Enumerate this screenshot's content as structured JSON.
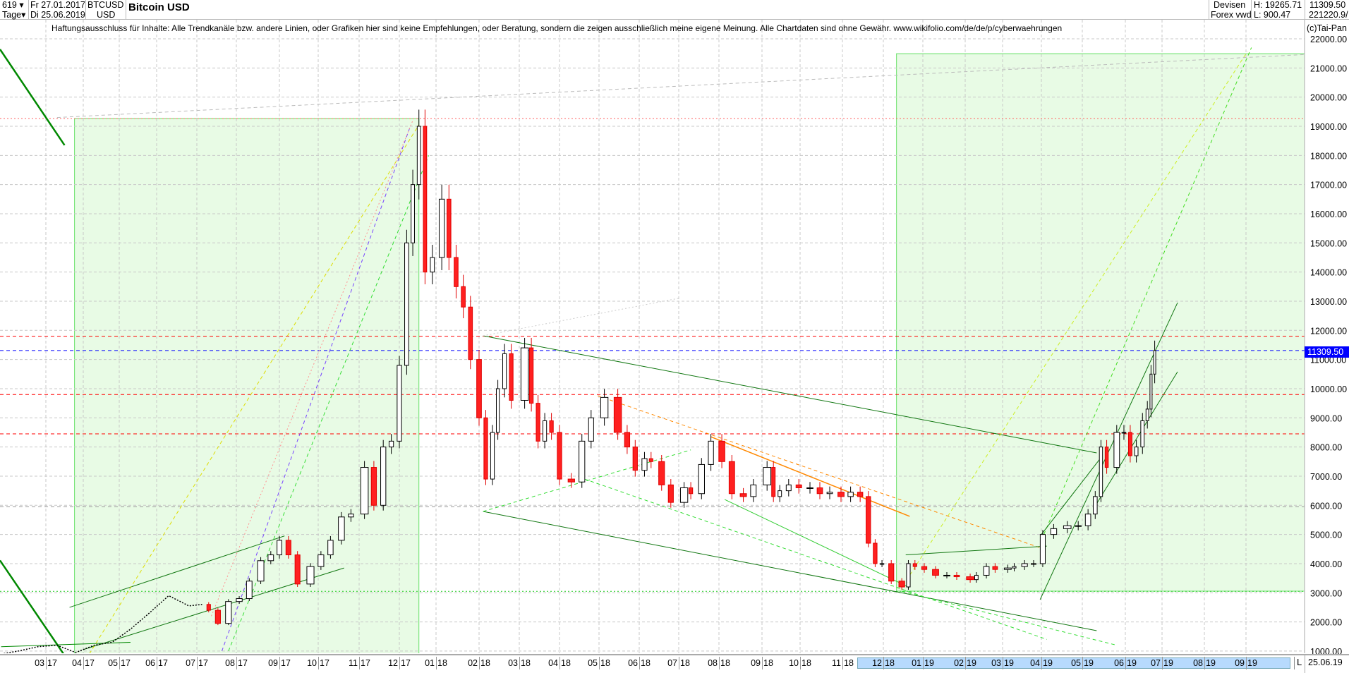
{
  "header": {
    "count": "619",
    "period": "Tage",
    "date_from": "Fr 27.01.2017",
    "date_to": "Di 25.06.2019",
    "symbol": "BTCUSD",
    "currency": "USD",
    "title": "Bitcoin USD",
    "market": "Devisen",
    "exchange": "Forex vwd",
    "high": "H: 19265.71",
    "low": "L: 900.47",
    "last": "11309.50",
    "volume": "221220.9/",
    "copyright": "(c)Tai-Pan",
    "disclaimer": "Haftungsausschluss für Inhalte: Alle Trendkanäle bzw. andere Linien, oder Grafiken hier sind keine Empfehlungen, oder Beratung, sondern die zeigen ausschließlich meine eigene Meinung. Alle Chartdaten sind ohne Gewähr.  www.wikifolio.com/de/de/p/cyberwaehrungen",
    "last_date": "25.06.19",
    "scale_mode": "L"
  },
  "chart_data": {
    "type": "candlestick",
    "title": "Bitcoin USD",
    "ylim": [
      1000,
      22000
    ],
    "y_ticks": [
      "22000.00",
      "21000.00",
      "20000.00",
      "19000.00",
      "18000.00",
      "17000.00",
      "16000.00",
      "15000.00",
      "14000.00",
      "13000.00",
      "12000.00",
      "11000.00",
      "10000.00",
      "9000.00",
      "8000.00",
      "7000.00",
      "6000.00",
      "5000.00",
      "4000.00",
      "3000.00",
      "2000.00",
      "1000.00"
    ],
    "x_ticks": [
      "03 17",
      "04 17",
      "05 17",
      "06 17",
      "07 17",
      "08 17",
      "09 17",
      "10 17",
      "11 17",
      "12 17",
      "01 18",
      "02 18",
      "03 18",
      "04 18",
      "05 18",
      "06 18",
      "07 18",
      "08 18",
      "09 18",
      "10 18",
      "11 18",
      "12 18",
      "01 19",
      "02 19",
      "03 19",
      "04 19",
      "05 19",
      "06 19",
      "07 19",
      "08 19",
      "09 19"
    ],
    "grid": true,
    "last_value": 11309.5,
    "last_value_color": "#0000ff",
    "closes": [
      [
        "2017-01-27",
        900
      ],
      [
        "2017-02-10",
        1000
      ],
      [
        "2017-02-25",
        1150
      ],
      [
        "2017-03-10",
        1200
      ],
      [
        "2017-03-25",
        950
      ],
      [
        "2017-04-10",
        1200
      ],
      [
        "2017-04-25",
        1300
      ],
      [
        "2017-05-10",
        1750
      ],
      [
        "2017-05-25",
        2300
      ],
      [
        "2017-06-10",
        2900
      ],
      [
        "2017-06-25",
        2550
      ],
      [
        "2017-07-05",
        2600
      ],
      [
        "2017-07-10",
        2400
      ],
      [
        "2017-07-17",
        1950
      ],
      [
        "2017-07-25",
        2700
      ],
      [
        "2017-08-03",
        2800
      ],
      [
        "2017-08-10",
        3400
      ],
      [
        "2017-08-18",
        4100
      ],
      [
        "2017-08-25",
        4300
      ],
      [
        "2017-09-01",
        4800
      ],
      [
        "2017-09-08",
        4300
      ],
      [
        "2017-09-15",
        3300
      ],
      [
        "2017-09-25",
        3900
      ],
      [
        "2017-10-03",
        4300
      ],
      [
        "2017-10-10",
        4800
      ],
      [
        "2017-10-18",
        5600
      ],
      [
        "2017-10-25",
        5700
      ],
      [
        "2017-11-05",
        7300
      ],
      [
        "2017-11-12",
        6000
      ],
      [
        "2017-11-19",
        8000
      ],
      [
        "2017-11-25",
        8200
      ],
      [
        "2017-12-01",
        10800
      ],
      [
        "2017-12-07",
        15000
      ],
      [
        "2017-12-12",
        17000
      ],
      [
        "2017-12-17",
        19000
      ],
      [
        "2017-12-22",
        14000
      ],
      [
        "2017-12-28",
        14500
      ],
      [
        "2018-01-05",
        16500
      ],
      [
        "2018-01-10",
        14500
      ],
      [
        "2018-01-15",
        13500
      ],
      [
        "2018-01-20",
        12800
      ],
      [
        "2018-01-25",
        11000
      ],
      [
        "2018-02-01",
        9000
      ],
      [
        "2018-02-06",
        6900
      ],
      [
        "2018-02-11",
        8500
      ],
      [
        "2018-02-15",
        10000
      ],
      [
        "2018-02-20",
        11200
      ],
      [
        "2018-02-25",
        9600
      ],
      [
        "2018-03-05",
        11400
      ],
      [
        "2018-03-10",
        9500
      ],
      [
        "2018-03-15",
        8200
      ],
      [
        "2018-03-20",
        8900
      ],
      [
        "2018-03-25",
        8500
      ],
      [
        "2018-04-01",
        6900
      ],
      [
        "2018-04-10",
        6800
      ],
      [
        "2018-04-18",
        8200
      ],
      [
        "2018-04-25",
        9000
      ],
      [
        "2018-05-05",
        9700
      ],
      [
        "2018-05-15",
        8500
      ],
      [
        "2018-05-22",
        8000
      ],
      [
        "2018-05-28",
        7200
      ],
      [
        "2018-06-05",
        7600
      ],
      [
        "2018-06-10",
        7500
      ],
      [
        "2018-06-18",
        6700
      ],
      [
        "2018-06-25",
        6100
      ],
      [
        "2018-07-05",
        6600
      ],
      [
        "2018-07-10",
        6400
      ],
      [
        "2018-07-18",
        7400
      ],
      [
        "2018-07-25",
        8200
      ],
      [
        "2018-08-03",
        7500
      ],
      [
        "2018-08-10",
        6400
      ],
      [
        "2018-08-18",
        6300
      ],
      [
        "2018-08-25",
        6700
      ],
      [
        "2018-09-05",
        7300
      ],
      [
        "2018-09-10",
        6300
      ],
      [
        "2018-09-15",
        6500
      ],
      [
        "2018-09-22",
        6700
      ],
      [
        "2018-09-30",
        6600
      ],
      [
        "2018-10-08",
        6600
      ],
      [
        "2018-10-15",
        6400
      ],
      [
        "2018-10-22",
        6450
      ],
      [
        "2018-10-30",
        6300
      ],
      [
        "2018-11-07",
        6450
      ],
      [
        "2018-11-14",
        6300
      ],
      [
        "2018-11-20",
        4700
      ],
      [
        "2018-11-25",
        4000
      ],
      [
        "2018-11-30",
        4000
      ],
      [
        "2018-12-07",
        3400
      ],
      [
        "2018-12-15",
        3200
      ],
      [
        "2018-12-20",
        4000
      ],
      [
        "2018-12-25",
        3900
      ],
      [
        "2019-01-02",
        3800
      ],
      [
        "2019-01-10",
        3600
      ],
      [
        "2019-01-18",
        3600
      ],
      [
        "2019-01-25",
        3550
      ],
      [
        "2019-02-05",
        3450
      ],
      [
        "2019-02-10",
        3600
      ],
      [
        "2019-02-18",
        3900
      ],
      [
        "2019-02-25",
        3800
      ],
      [
        "2019-03-05",
        3850
      ],
      [
        "2019-03-10",
        3900
      ],
      [
        "2019-03-18",
        4000
      ],
      [
        "2019-03-25",
        4000
      ],
      [
        "2019-04-02",
        5000
      ],
      [
        "2019-04-10",
        5200
      ],
      [
        "2019-04-20",
        5300
      ],
      [
        "2019-04-28",
        5300
      ],
      [
        "2019-05-05",
        5700
      ],
      [
        "2019-05-10",
        6300
      ],
      [
        "2019-05-14",
        8000
      ],
      [
        "2019-05-18",
        7300
      ],
      [
        "2019-05-25",
        8500
      ],
      [
        "2019-05-30",
        8500
      ],
      [
        "2019-06-05",
        7700
      ],
      [
        "2019-06-10",
        8000
      ],
      [
        "2019-06-15",
        8900
      ],
      [
        "2019-06-19",
        9300
      ],
      [
        "2019-06-22",
        10500
      ],
      [
        "2019-06-25",
        11309.5
      ]
    ],
    "line_until": "2017-07-05",
    "horizontal_lines": [
      {
        "price": 19265.71,
        "color": "#ff6060",
        "style": "dotted"
      },
      {
        "price": 11800,
        "color": "#ff0000",
        "style": "dashed"
      },
      {
        "price": 11309.5,
        "color": "#0000ff",
        "style": "dashed"
      },
      {
        "price": 9800,
        "color": "#ff0000",
        "style": "dashed"
      },
      {
        "price": 8450,
        "color": "#ff0000",
        "style": "dashed"
      },
      {
        "price": 5950,
        "color": "#999999",
        "style": "dashed"
      },
      {
        "price": 3050,
        "color": "#22cc22",
        "style": "dotted"
      }
    ],
    "zones": [
      {
        "from": "2017-03-24",
        "to": "2017-12-17",
        "low": 900.47,
        "high": 19265.71,
        "color": "#e8fbe5"
      },
      {
        "from": "2018-12-11",
        "to": "2019-10-31",
        "low": 3055,
        "high": 21490,
        "color": "#e8fbe5"
      }
    ],
    "trend_lines": [
      {
        "from": [
          "2017-03-16",
          18350
        ],
        "to": [
          "2019-11-10",
          21640
        ],
        "color": "#008800",
        "width": 2.5,
        "style": "solid"
      },
      {
        "from": [
          "2017-03-16",
          853
        ],
        "to": [
          "2019-11-10",
          4110
        ],
        "color": "#008800",
        "width": 2.5,
        "style": "solid"
      },
      {
        "from": [
          "2017-01-27",
          1150
        ],
        "to": [
          "2017-05-10",
          1300
        ],
        "color": "#008800",
        "width": 1,
        "style": "solid"
      },
      {
        "from": [
          "2017-03-20",
          2500
        ],
        "to": [
          "2017-09-05",
          4950
        ],
        "color": "#117711",
        "width": 1,
        "style": "solid"
      },
      {
        "from": [
          "2017-04-01",
          1050
        ],
        "to": [
          "2017-10-20",
          3850
        ],
        "color": "#117711",
        "width": 1,
        "style": "solid"
      },
      {
        "from": [
          "2017-04-06",
          900
        ],
        "to": [
          "2017-12-17",
          19050
        ],
        "color": "#dddd00",
        "width": 1,
        "style": "dashed"
      },
      {
        "from": [
          "2017-07-20",
          1000
        ],
        "to": [
          "2017-12-10",
          19000
        ],
        "color": "#7744ff",
        "width": 1,
        "style": "dashed"
      },
      {
        "from": [
          "2017-07-25",
          1000
        ],
        "to": [
          "2017-12-25",
          18000
        ],
        "color": "#33dd33",
        "width": 1,
        "style": "dashed"
      },
      {
        "from": [
          "2017-07-12",
          2200
        ],
        "to": [
          "2017-12-12",
          19200
        ],
        "color": "#ff9090",
        "width": 1,
        "style": "dotted"
      },
      {
        "from": [
          "2017-03-10",
          19300
        ],
        "to": [
          "2019-10-31",
          21500
        ],
        "color": "#bbbbbb",
        "width": 1,
        "style": "dashed"
      },
      {
        "from": [
          "2018-02-04",
          11814
        ],
        "to": [
          "2019-05-11",
          7797
        ],
        "color": "#117711",
        "width": 1,
        "style": "solid"
      },
      {
        "from": [
          "2018-02-04",
          5789
        ],
        "to": [
          "2019-05-11",
          1700
        ],
        "color": "#117711",
        "width": 1,
        "style": "solid"
      },
      {
        "from": [
          "2018-02-04",
          5789
        ],
        "to": [
          "2018-07-10",
          7900
        ],
        "color": "#33dd33",
        "width": 1,
        "style": "dashed"
      },
      {
        "from": [
          "2018-02-04",
          11814
        ],
        "to": [
          "2018-07-01",
          13100
        ],
        "color": "#cccccc",
        "width": 1,
        "style": "dotted"
      },
      {
        "from": [
          "2018-04-30",
          9757
        ],
        "to": [
          "2019-04-01",
          4530
        ],
        "color": "#ff8800",
        "width": 1,
        "style": "dashed"
      },
      {
        "from": [
          "2018-07-25",
          8350
        ],
        "to": [
          "2018-12-21",
          5620
        ],
        "color": "#ff8800",
        "width": 1.5,
        "style": "solid"
      },
      {
        "from": [
          "2018-04-20",
          6900
        ],
        "to": [
          "2019-04-05",
          1400
        ],
        "color": "#33dd33",
        "width": 1,
        "style": "dashed"
      },
      {
        "from": [
          "2018-08-05",
          6200
        ],
        "to": [
          "2018-12-20",
          3200
        ],
        "color": "#33cc33",
        "width": 1,
        "style": "solid"
      },
      {
        "from": [
          "2018-12-15",
          3050
        ],
        "to": [
          "2019-05-25",
          1200
        ],
        "color": "#33dd33",
        "width": 1,
        "style": "dashed"
      },
      {
        "from": [
          "2018-12-18",
          4300
        ],
        "to": [
          "2019-04-05",
          4600
        ],
        "color": "#117711",
        "width": 1,
        "style": "solid"
      },
      {
        "from": [
          "2018-12-16",
          3250
        ],
        "to": [
          "2019-09-02",
          21560
        ],
        "color": "#ccee22",
        "width": 1,
        "style": "dashed"
      },
      {
        "from": [
          "2019-04-01",
          4800
        ],
        "to": [
          "2019-09-05",
          21700
        ],
        "color": "#44dd22",
        "width": 1,
        "style": "dashed"
      },
      {
        "from": [
          "2019-03-30",
          2765
        ],
        "to": [
          "2019-07-12",
          12950
        ],
        "color": "#117711",
        "width": 1,
        "style": "solid"
      },
      {
        "from": [
          "2019-05-11",
          6055
        ],
        "to": [
          "2019-07-12",
          10580
        ],
        "color": "#117711",
        "width": 1,
        "style": "solid"
      },
      {
        "from": [
          "2019-04-01",
          5000
        ],
        "to": [
          "2019-05-15",
          7700
        ],
        "color": "#117711",
        "width": 1,
        "style": "solid"
      }
    ]
  }
}
